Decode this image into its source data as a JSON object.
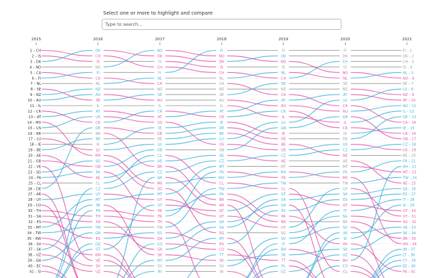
{
  "controls": {
    "prompt": "Select one or more to highlight and compare",
    "search_placeholder": "Type to search..."
  },
  "colors": {
    "rising": "#3bb0dd",
    "falling": "#e34fa6",
    "neutral": "#9a9a9a"
  },
  "chart_data": {
    "type": "line",
    "subtype": "bump",
    "title": "",
    "years": [
      "2015",
      "2016",
      "2017",
      "2018",
      "2019",
      "2020",
      "2021"
    ],
    "rankings": [
      [
        "CH",
        "IS",
        "DK",
        "NO",
        "CA",
        "FI",
        "NL",
        "SE",
        "NZ",
        "AU",
        "IL",
        "CR",
        "AT",
        "MX",
        "US",
        "BR",
        "LU",
        "IE",
        "BE",
        "AE",
        "GB",
        "VE",
        "SG",
        "PA",
        "CL",
        "DE",
        "AR",
        "UY",
        "CO",
        "TH",
        "SA",
        "ES",
        "MT",
        "TW",
        "KW",
        "SV",
        "SK",
        "UZ",
        "QA",
        "EC",
        "SI"
      ],
      [
        "DK",
        "CH",
        "IS",
        "NO",
        "FI",
        "CA",
        "NL",
        "NZ",
        "AU",
        "SE",
        "IL",
        "AT",
        "US",
        "CR",
        "DE",
        "BR",
        "BE",
        "IE",
        "LU",
        "MX",
        "SG",
        "GB",
        "PA",
        "AE",
        "CL",
        "CZ",
        "UY",
        "MT",
        "SK",
        "FR",
        "TH",
        "SA",
        "TW",
        "QA",
        "ES",
        "DZ",
        "GT",
        "KW",
        "VE",
        "SV",
        "UZ"
      ],
      [
        "NO",
        "DK",
        "IS",
        "CH",
        "FI",
        "NL",
        "CA",
        "NZ",
        "SE",
        "AU",
        "IL",
        "CR",
        "AT",
        "US",
        "IE",
        "DE",
        "BE",
        "LU",
        "GB",
        "CL",
        "AE",
        "BR",
        "CZ",
        "AR",
        "MX",
        "SG",
        "MT",
        "UY",
        "GT",
        "PA",
        "FR",
        "TH",
        "TW",
        "ES",
        "QA",
        "CO",
        "SA",
        "SK",
        "MY",
        "SV",
        "NI"
      ],
      [
        "FI",
        "NO",
        "DK",
        "IS",
        "CH",
        "NL",
        "CA",
        "NZ",
        "SE",
        "AU",
        "IL",
        "AT",
        "CR",
        "IE",
        "DE",
        "BE",
        "LU",
        "US",
        "GB",
        "AE",
        "CZ",
        "MT",
        "FR",
        "MX",
        "CL",
        "TW",
        "PA",
        "BR",
        "AR",
        "GT",
        "UY",
        "QA",
        "SA",
        "SG",
        "MY",
        "ES",
        "CO",
        "TT",
        "SK",
        "SV",
        "NI"
      ],
      [
        "FI",
        "DK",
        "NO",
        "IS",
        "NL",
        "CH",
        "SE",
        "NZ",
        "CA",
        "AT",
        "AU",
        "CR",
        "IL",
        "LU",
        "GB",
        "IE",
        "DE",
        "BE",
        "US",
        "CZ",
        "AE",
        "MT",
        "MX",
        "FR",
        "TW",
        "CL",
        "GT",
        "SA",
        "QA",
        "ES",
        "PA",
        "BR",
        "UY",
        "SG",
        "SV",
        "IT",
        "BH",
        "SK",
        "TT",
        "PL",
        "UZ"
      ],
      [
        "FI",
        "DK",
        "CH",
        "IS",
        "NO",
        "NL",
        "SE",
        "NZ",
        "AT",
        "LU",
        "CA",
        "AU",
        "GB",
        "IL",
        "CR",
        "IE",
        "DE",
        "US",
        "CZ",
        "BE",
        "AE",
        "MT",
        "FR",
        "MX",
        "TW",
        "UY",
        "SA",
        "ES",
        "GT",
        "IT",
        "SG",
        "BR",
        "SV",
        "XK",
        "SI",
        "PA",
        "SK",
        "UZ",
        "BH",
        "CO",
        "CL"
      ],
      [
        "FI",
        "DK",
        "CH",
        "IS",
        "NL",
        "NO",
        "SE",
        "LU",
        "NZ",
        "AT",
        "AU",
        "IL",
        "DE",
        "CA",
        "IE",
        "CR",
        "GB",
        "CZ",
        "US",
        "BE",
        "FR",
        "BH",
        "MT",
        "TW",
        "AE",
        "SA",
        "ES",
        "IT",
        "SI",
        "GT",
        "UY",
        "SG",
        "XK",
        "SK",
        "BR",
        "MX",
        "JM",
        "LT",
        "CY",
        "EE",
        "PA"
      ]
    ]
  }
}
